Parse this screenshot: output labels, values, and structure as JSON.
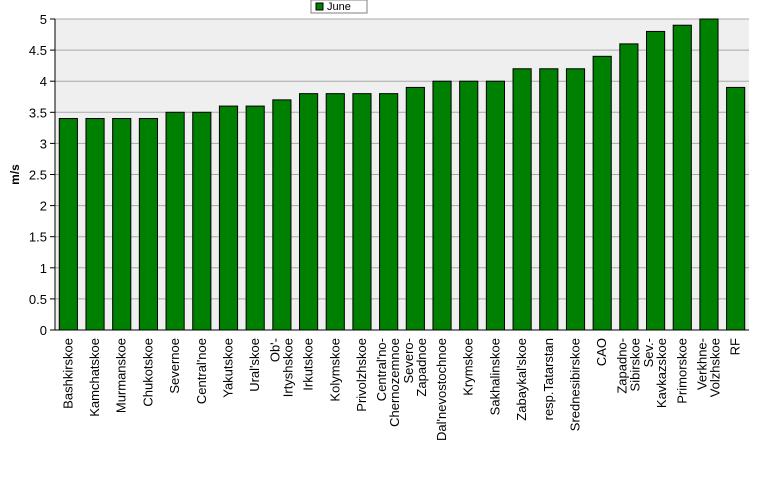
{
  "chart_data": {
    "type": "bar",
    "title": "",
    "xlabel": "",
    "ylabel": "m/s",
    "ylim": [
      0,
      5
    ],
    "yticks": [
      0,
      0.5,
      1,
      1.5,
      2,
      2.5,
      3,
      3.5,
      4,
      4.5,
      5
    ],
    "grid": true,
    "legend_position": "top-center",
    "plot_background": "#efefef",
    "colors": {
      "bar_fill": "#008000",
      "bar_stroke": "#000000",
      "grid": "#a8a8a8"
    },
    "categories": [
      "Bashkirskoe",
      "Kamchatskoe",
      "Murmanskoe",
      "Chukotskoe",
      "Severnoe",
      "Central'noe",
      "Yakutskoe",
      "Ural'skoe",
      "Ob'-Irtyshskoe",
      "Irkutskoe",
      "Kolymskoe",
      "Privolzhskoe",
      "Central'no-Chernozemnoe",
      "Severo-Zapadnoe",
      "Dal'nevostochnoe",
      "Krymskoe",
      "Sakhalinskoe",
      "Zabaykal'skoe",
      "resp.Tatarstan",
      "Srednesibirskoe",
      "CAO",
      "Zapadno-Sibirskoe",
      "Sev.-Kavkazskoe",
      "Primorskoe",
      "Verkhne-Volzhskoe",
      "RF"
    ],
    "category_label_lines": [
      [
        "Bashkirskoe"
      ],
      [
        "Kamchatskoe"
      ],
      [
        "Murmanskoe"
      ],
      [
        "Chukotskoe"
      ],
      [
        "Severnoe"
      ],
      [
        "Central'noe"
      ],
      [
        "Yakutskoe"
      ],
      [
        "Ural'skoe"
      ],
      [
        "Ob'-",
        "Irtyshskoe"
      ],
      [
        "Irkutskoe"
      ],
      [
        "Kolymskoe"
      ],
      [
        "Privolzhskoe"
      ],
      [
        "Central'no-",
        "Chernozemnoe"
      ],
      [
        "Severo-",
        "Zapadnoe"
      ],
      [
        "Dal'nevostochnoe"
      ],
      [
        "Krymskoe"
      ],
      [
        "Sakhalinskoe"
      ],
      [
        "Zabaykal'skoe"
      ],
      [
        "resp.Tatarstan"
      ],
      [
        "Srednesibirskoe"
      ],
      [
        "CAO"
      ],
      [
        "Zapadno-",
        "Sibirskoe"
      ],
      [
        "Sev.-",
        "Kavkazskoe"
      ],
      [
        "Primorskoe"
      ],
      [
        "Verkhne-",
        "Volzhskoe"
      ],
      [
        "RF"
      ]
    ],
    "series": [
      {
        "name": "June",
        "values": [
          3.4,
          3.4,
          3.4,
          3.4,
          3.5,
          3.5,
          3.6,
          3.6,
          3.7,
          3.8,
          3.8,
          3.8,
          3.8,
          3.9,
          4.0,
          4.0,
          4.0,
          4.2,
          4.2,
          4.2,
          4.4,
          4.6,
          4.8,
          4.9,
          5.0,
          3.9
        ]
      }
    ]
  }
}
